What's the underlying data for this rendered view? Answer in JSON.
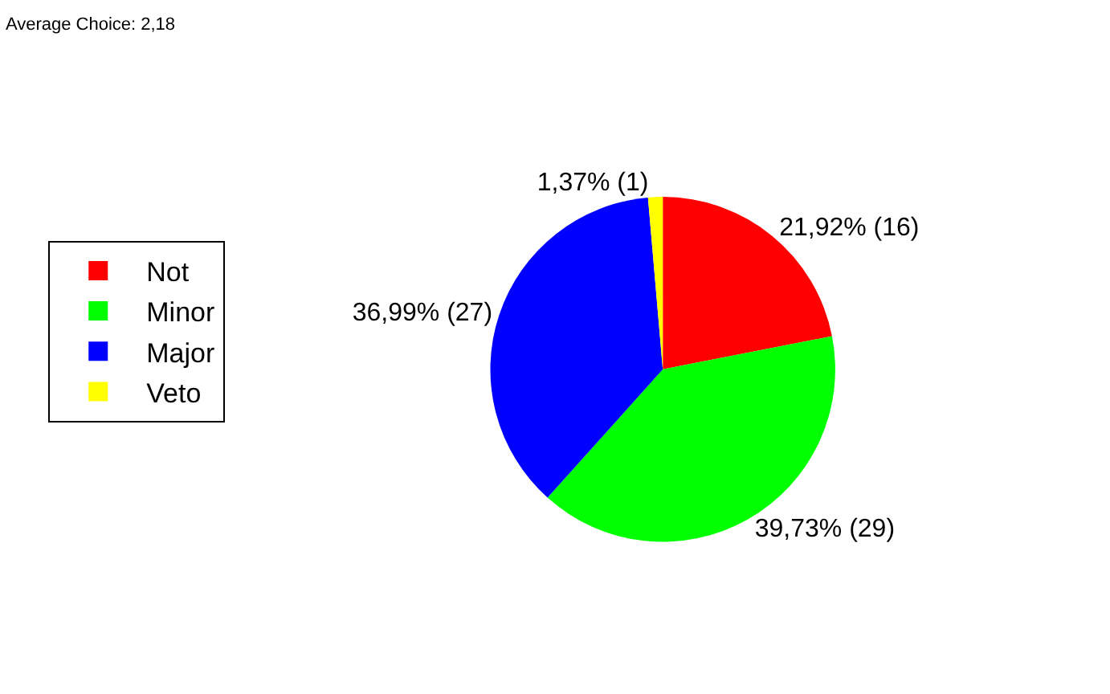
{
  "chart_data": {
    "type": "pie",
    "title": "Average Choice: 2,18",
    "categories": [
      "Not",
      "Minor",
      "Major",
      "Veto"
    ],
    "values": [
      16,
      29,
      27,
      1
    ],
    "colors": [
      "#ff0000",
      "#00ff00",
      "#0000ff",
      "#ffff00"
    ],
    "value_labels": [
      "21,92% (16)",
      "39,73% (29)",
      "36,99% (27)",
      "1,37% (1)"
    ],
    "legend": "left"
  }
}
